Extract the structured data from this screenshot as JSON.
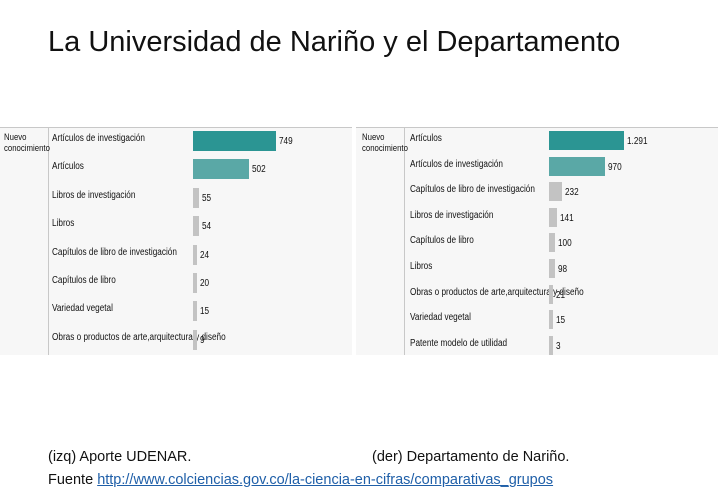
{
  "slide_title": "La Universidad de Nariño y el Departamento",
  "caption_left": "(izq) Aporte UDENAR.",
  "caption_right": "(der) Departamento de Nariño.",
  "source_prefix": "Fuente",
  "source_link": "http://www.colciencias.gov.co/la-ciencia-en-cifras/comparativas_grupos",
  "colors": {
    "dark_teal": "#2b9593",
    "light_teal": "#5aa8a6",
    "gray": "#c3c3c3"
  },
  "chart_data": [
    {
      "type": "bar",
      "orientation": "horizontal",
      "group_label": "Nuevo conocimiento",
      "categories": [
        "Artículos de investigación",
        "Artículos",
        "Libros de investigación",
        "Libros",
        "Capítulos de libro de investigación",
        "Capítulos de libro",
        "Variedad vegetal",
        "Obras o productos de arte,arquitectura y diseño"
      ],
      "values": [
        749,
        502,
        55,
        54,
        24,
        20,
        15,
        9
      ],
      "value_labels": [
        "749",
        "502",
        "55",
        "54",
        "24",
        "20",
        "15",
        "9"
      ],
      "bar_colors": [
        "#2b9593",
        "#5aa8a6",
        "#c3c3c3",
        "#c3c3c3",
        "#c3c3c3",
        "#c3c3c3",
        "#c3c3c3",
        "#c3c3c3"
      ]
    },
    {
      "type": "bar",
      "orientation": "horizontal",
      "group_label": "Nuevo conocimiento",
      "categories": [
        "Artículos",
        "Artículos de investigación",
        "Capítulos de libro de investigación",
        "Libros de investigación",
        "Capítulos de libro",
        "Libros",
        "Obras o productos de arte,arquitectura y diseño",
        "Variedad vegetal",
        "Patente modelo de utilidad"
      ],
      "values": [
        1291,
        970,
        232,
        141,
        100,
        98,
        21,
        15,
        3
      ],
      "value_labels": [
        "1.291",
        "970",
        "232",
        "141",
        "100",
        "98",
        "21",
        "15",
        "3"
      ],
      "bar_colors": [
        "#2b9593",
        "#5aa8a6",
        "#c3c3c3",
        "#c3c3c3",
        "#c3c3c3",
        "#c3c3c3",
        "#c3c3c3",
        "#c3c3c3",
        "#c3c3c3"
      ]
    }
  ]
}
